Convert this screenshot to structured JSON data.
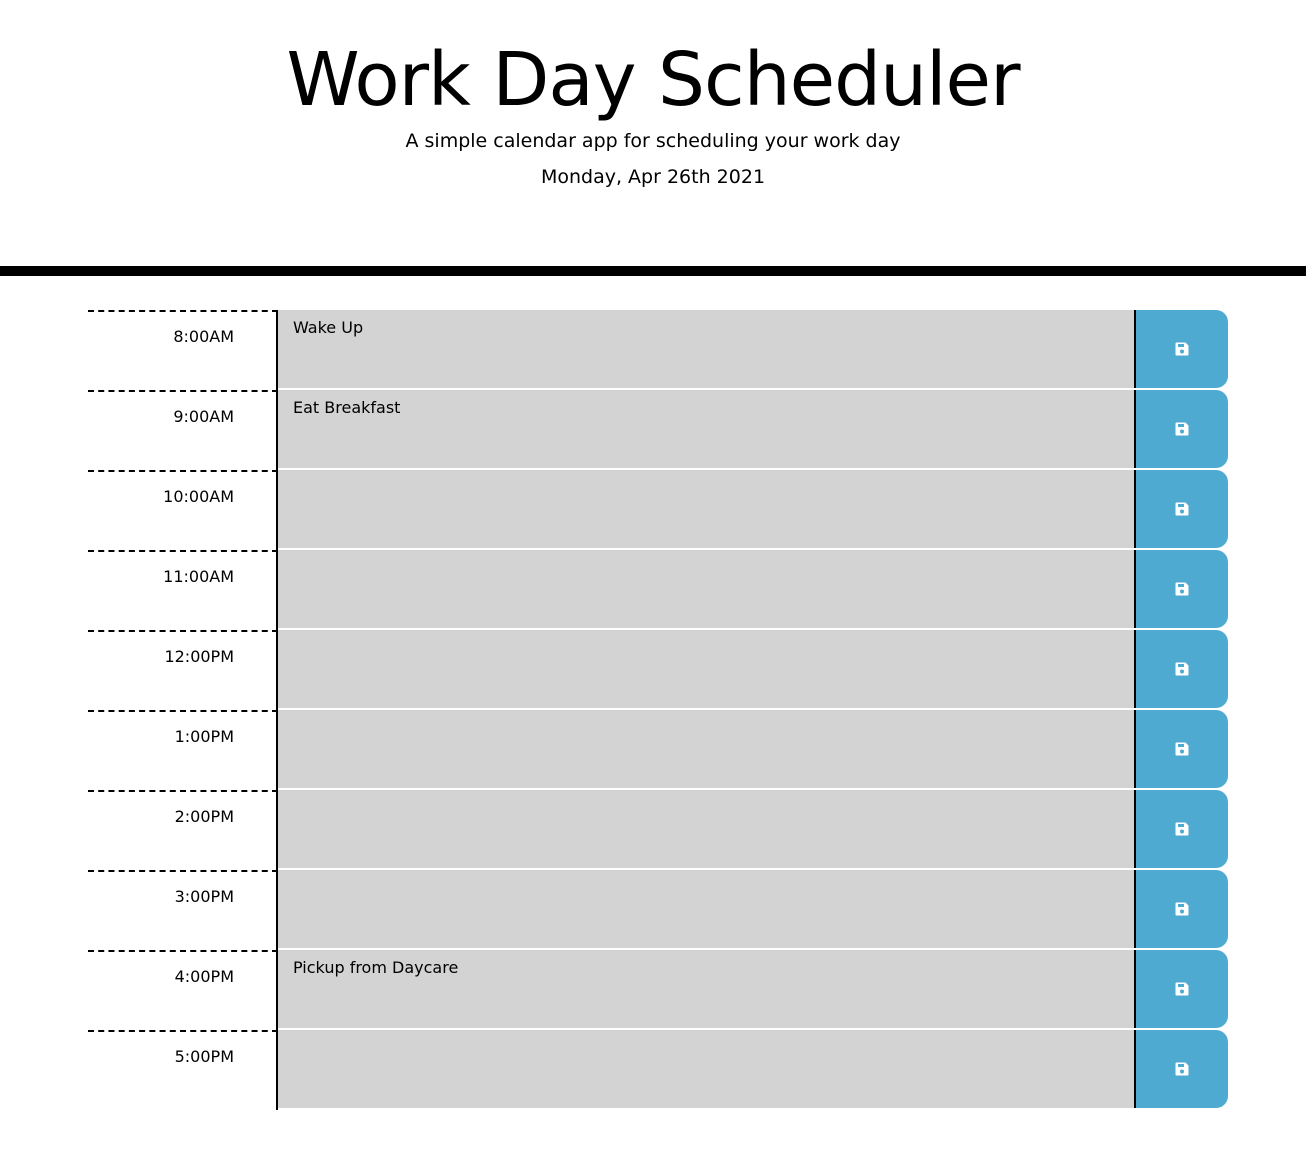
{
  "header": {
    "title": "Work Day Scheduler",
    "subtitle": "A simple calendar app for scheduling your work day",
    "current_day": "Monday, Apr 26th 2021"
  },
  "colors": {
    "description_bg": "#d3d3d3",
    "save_button_bg": "#4eaad0",
    "divider": "#000000"
  },
  "schedule": [
    {
      "hour": "8:00AM",
      "text": "Wake Up",
      "save_icon": "floppy-disk-icon"
    },
    {
      "hour": "9:00AM",
      "text": "Eat Breakfast",
      "save_icon": "floppy-disk-icon"
    },
    {
      "hour": "10:00AM",
      "text": "",
      "save_icon": "floppy-disk-icon"
    },
    {
      "hour": "11:00AM",
      "text": "",
      "save_icon": "floppy-disk-icon"
    },
    {
      "hour": "12:00PM",
      "text": "",
      "save_icon": "floppy-disk-icon"
    },
    {
      "hour": "1:00PM",
      "text": "",
      "save_icon": "floppy-disk-icon"
    },
    {
      "hour": "2:00PM",
      "text": "",
      "save_icon": "floppy-disk-icon"
    },
    {
      "hour": "3:00PM",
      "text": "",
      "save_icon": "floppy-disk-icon"
    },
    {
      "hour": "4:00PM",
      "text": "Pickup from Daycare",
      "save_icon": "floppy-disk-icon"
    },
    {
      "hour": "5:00PM",
      "text": "",
      "save_icon": "floppy-disk-icon"
    }
  ]
}
